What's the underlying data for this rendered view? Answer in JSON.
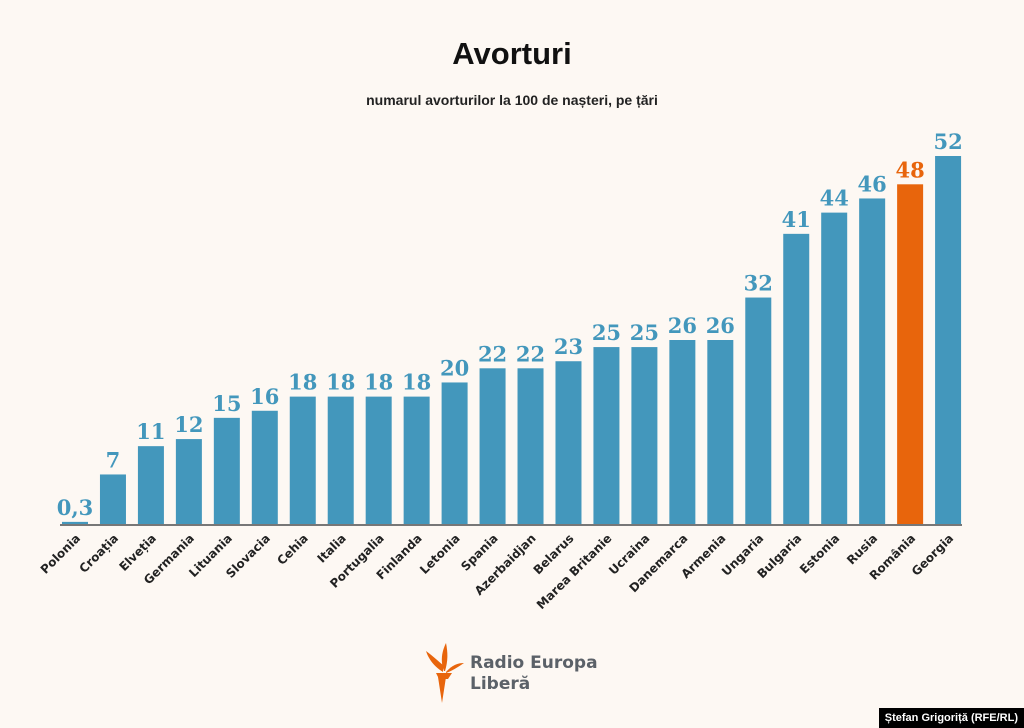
{
  "chart_data": {
    "type": "bar",
    "title": "Avorturi",
    "subtitle": "numarul avorturilor la 100 de nașteri, pe țări",
    "categories": [
      "Polonia",
      "Croația",
      "Elveția",
      "Germania",
      "Lituania",
      "Slovacia",
      "Cehia",
      "Italia",
      "Portugalia",
      "Finlanda",
      "Letonia",
      "Spania",
      "Azerbaidjan",
      "Belarus",
      "Marea Britanie",
      "Ucraina",
      "Danemarca",
      "Armenia",
      "Ungaria",
      "Bulgaria",
      "Estonia",
      "Rusia",
      "România",
      "Georgia"
    ],
    "values": [
      0.3,
      7,
      11,
      12,
      15,
      16,
      18,
      18,
      18,
      18,
      20,
      22,
      22,
      23,
      25,
      25,
      26,
      26,
      32,
      41,
      44,
      46,
      48,
      52
    ],
    "value_labels": [
      "0,3",
      "7",
      "11",
      "12",
      "15",
      "16",
      "18",
      "18",
      "18",
      "18",
      "20",
      "22",
      "22",
      "23",
      "25",
      "25",
      "26",
      "26",
      "32",
      "41",
      "44",
      "46",
      "48",
      "52"
    ],
    "highlight": "România",
    "colors": {
      "bar": "#4397bc",
      "highlight": "#e8650c",
      "background": "#fdf8f3"
    },
    "ylim": [
      0,
      52
    ],
    "grid": false,
    "legend": "none"
  },
  "logo": {
    "line1": "Radio Europa",
    "line2": "Liberă"
  },
  "credit": "Ștefan Grigoriță (RFE/RL)"
}
